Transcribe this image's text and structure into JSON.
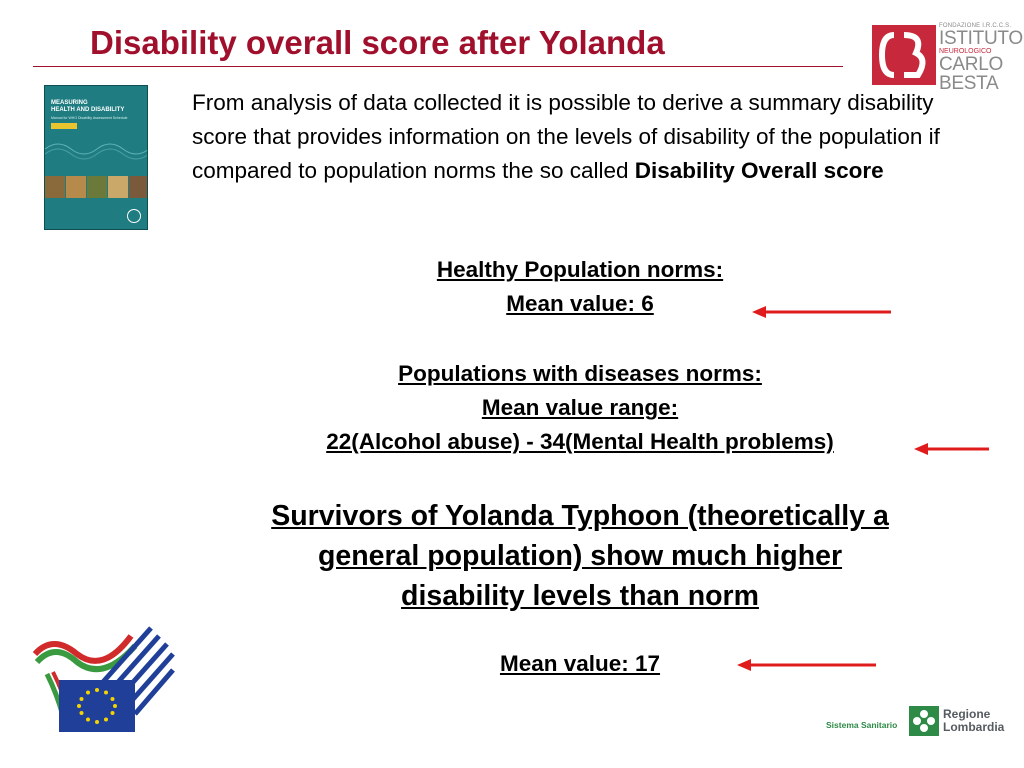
{
  "header": {
    "title": "Disability overall score after Yolanda"
  },
  "logos": {
    "besta": {
      "line1": "FONDAZIONE I.R.C.C.S.",
      "line2": "ISTITUTO",
      "line3": "NEUROLOGICO",
      "line4": "CARLO",
      "line5": "BESTA",
      "brand_color": "#c8283c"
    },
    "book": {
      "title_line1": "MEASURING",
      "title_line2": "HEALTH AND DISABILITY",
      "subtitle": "Manual for WHO Disability Assessment Schedule",
      "cover_color": "#1f7c80"
    },
    "lombardia": {
      "sistema": "Sistema Sanitario",
      "line1": "Regione",
      "line2": "Lombardia",
      "brand_color": "#2e8a47"
    }
  },
  "intro": {
    "text": "From analysis of data collected it is possible to derive a summary disability score that provides information on the levels of disability of the population if compared to population norms the so called ",
    "bold": "Disability Overall score"
  },
  "healthy": {
    "heading": "Healthy Population norms:",
    "mean": "Mean value: 6"
  },
  "diseases": {
    "heading": "Populations with diseases norms:",
    "range_label": "Mean value range:",
    "range": "22(Alcohol abuse) - 34(Mental Health problems)"
  },
  "survivors": {
    "line1": "Survivors of  Yolanda Typhoon (theoretically a",
    "line2": "general population) show much higher",
    "line3": "disability levels than norm"
  },
  "result": {
    "mean": "Mean value: 17"
  },
  "colors": {
    "title": "#a0102d",
    "arrow": "#e01b1b",
    "eu_blue": "#1f3f99",
    "eu_star": "#f4d300"
  }
}
